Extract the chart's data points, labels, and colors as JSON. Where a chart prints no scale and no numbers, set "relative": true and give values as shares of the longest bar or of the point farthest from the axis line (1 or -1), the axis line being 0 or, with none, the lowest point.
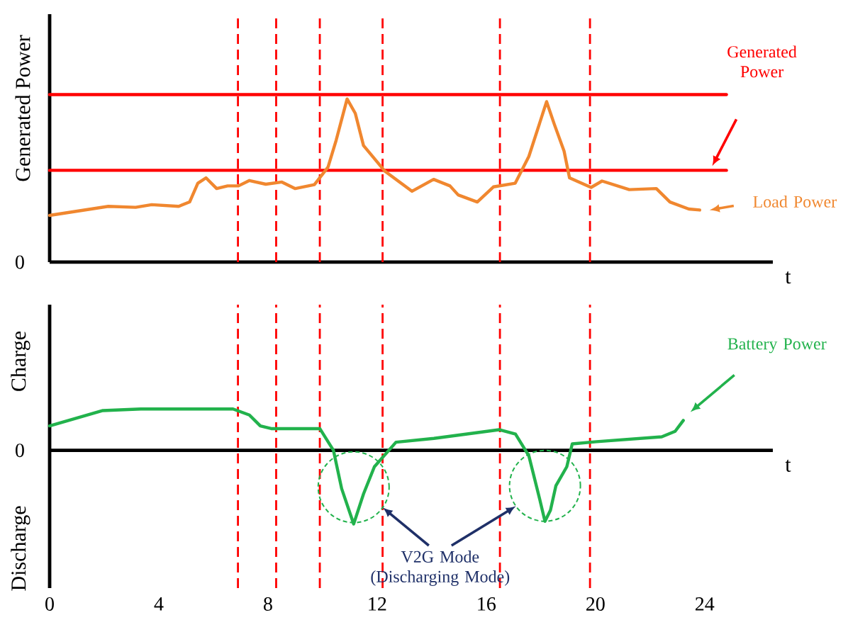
{
  "chart_data": [
    {
      "type": "line",
      "relative": true,
      "ylabel": "Generated Power",
      "xlabel": "t",
      "xlim": [
        0,
        26.5
      ],
      "xticks": [
        0,
        4,
        8,
        12,
        16,
        20,
        24
      ],
      "tick_labels": false,
      "grid": false,
      "annotations": [
        "0"
      ],
      "series": [
        {
          "name": "Generated Power",
          "color": "#ff0000",
          "x": [
            0,
            24.8
          ],
          "values": [
            0.548,
            0.548
          ]
        },
        {
          "color": "#ff0000",
          "x": [
            0,
            24.8
          ],
          "values": [
            1,
            1
          ]
        },
        {
          "name": "Load Power",
          "color": "#f0872f",
          "x": [
            0,
            2.15,
            3.15,
            3.74,
            4.73,
            5.13,
            5.43,
            5.73,
            6.12,
            6.52,
            6.92,
            7.32,
            7.92,
            8.51,
            9.0,
            9.7,
            10.2,
            10.5,
            10.9,
            11.2,
            11.5,
            12.29,
            13.28,
            14.07,
            14.67,
            14.97,
            15.67,
            16.26,
            17.06,
            17.56,
            18.21,
            18.49,
            18.85,
            19.05,
            19.84,
            20.24,
            21.24,
            22.23,
            22.73,
            23.42,
            23.82
          ],
          "values": [
            0.279,
            0.333,
            0.327,
            0.343,
            0.333,
            0.359,
            0.471,
            0.503,
            0.439,
            0.455,
            0.455,
            0.487,
            0.465,
            0.478,
            0.439,
            0.462,
            0.567,
            0.728,
            0.974,
            0.888,
            0.696,
            0.542,
            0.423,
            0.494,
            0.455,
            0.401,
            0.359,
            0.449,
            0.471,
            0.631,
            0.958,
            0.824,
            0.663,
            0.503,
            0.446,
            0.484,
            0.433,
            0.439,
            0.359,
            0.317,
            0.311
          ]
        }
      ],
      "ref_lines": [
        {
          "axis": "x",
          "value": 6.9,
          "color": "#ff0000",
          "line_style": "dashed"
        },
        {
          "axis": "x",
          "value": 8.3,
          "color": "#ff0000",
          "line_style": "dashed"
        },
        {
          "axis": "x",
          "value": 9.9,
          "color": "#ff0000",
          "line_style": "dashed"
        },
        {
          "axis": "x",
          "value": 12.2,
          "color": "#ff0000",
          "line_style": "dashed"
        },
        {
          "axis": "x",
          "value": 16.5,
          "color": "#ff0000",
          "line_style": "dashed"
        },
        {
          "axis": "x",
          "value": 19.8,
          "color": "#ff0000",
          "line_style": "dashed"
        }
      ]
    },
    {
      "type": "line",
      "relative": true,
      "ylabel": "Charge",
      "xlabel": "t",
      "xlim": [
        0,
        26.5
      ],
      "xticks": [
        0,
        4,
        8,
        12,
        16,
        20,
        24
      ],
      "grid": false,
      "annotations": [
        "V2G Mode (Discharging Mode)",
        "Discharge",
        "0"
      ],
      "series": [
        {
          "name": "Battery Power",
          "color": "#22b24c",
          "x": [
            0,
            1.95,
            3.34,
            6.72,
            7.32,
            7.72,
            8.12,
            9.9,
            10.4,
            10.7,
            11.14,
            11.5,
            11.9,
            12.69,
            14.08,
            16.47,
            17.07,
            17.56,
            17.96,
            18.15,
            18.35,
            18.55,
            18.95,
            19.15,
            20.04,
            22.43,
            22.92,
            23.22
          ],
          "values": [
            0.333,
            0.541,
            0.563,
            0.563,
            0.481,
            0.333,
            0.296,
            0.296,
            0,
            -0.519,
            -1,
            -0.593,
            -0.222,
            0.111,
            0.163,
            0.281,
            0.222,
            -0.074,
            -0.667,
            -0.963,
            -0.815,
            -0.481,
            -0.222,
            0.089,
            0.119,
            0.185,
            0.259,
            0.407
          ]
        }
      ],
      "ref_lines": [
        {
          "axis": "x",
          "value": 6.9,
          "color": "#ff0000",
          "line_style": "dashed"
        },
        {
          "axis": "x",
          "value": 8.3,
          "color": "#ff0000",
          "line_style": "dashed"
        },
        {
          "axis": "x",
          "value": 9.9,
          "color": "#ff0000",
          "line_style": "dashed"
        },
        {
          "axis": "x",
          "value": 12.2,
          "color": "#ff0000",
          "line_style": "dashed"
        },
        {
          "axis": "x",
          "value": 16.5,
          "color": "#ff0000",
          "line_style": "dashed"
        },
        {
          "axis": "x",
          "value": 19.8,
          "color": "#ff0000",
          "line_style": "dashed"
        }
      ]
    }
  ]
}
